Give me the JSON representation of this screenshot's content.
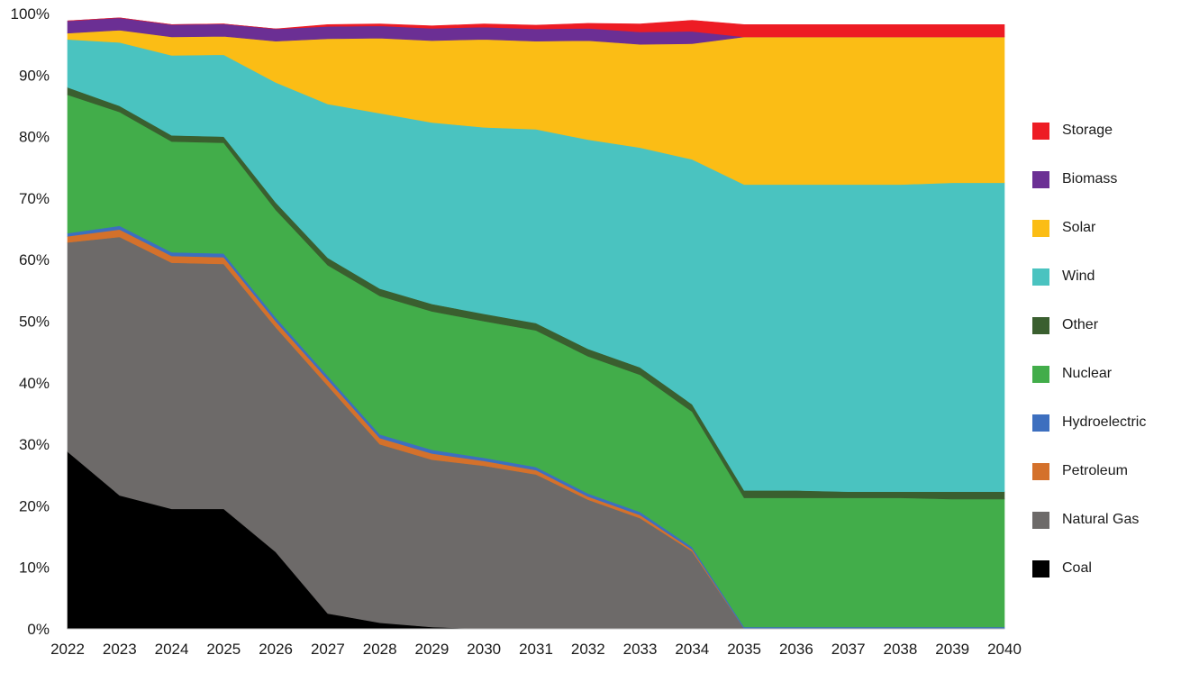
{
  "chart_data": {
    "type": "area",
    "stacked": true,
    "title": "",
    "xlabel": "",
    "ylabel": "",
    "ylim": [
      0,
      100
    ],
    "y_tick_labels": [
      "0%",
      "10%",
      "20%",
      "30%",
      "40%",
      "50%",
      "60%",
      "70%",
      "80%",
      "90%",
      "100%"
    ],
    "x": [
      "2022",
      "2023",
      "2024",
      "2025",
      "2026",
      "2027",
      "2028",
      "2029",
      "2030",
      "2031",
      "2032",
      "2033",
      "2034",
      "2035",
      "2036",
      "2037",
      "2038",
      "2039",
      "2040"
    ],
    "legend_position": "right",
    "series": [
      {
        "name": "Coal",
        "color": "#000000",
        "values": [
          28.8,
          21.7,
          19.5,
          19.5,
          12.5,
          2.5,
          1.0,
          0.3,
          0,
          0,
          0,
          0,
          0,
          0,
          0,
          0,
          0,
          0,
          0
        ]
      },
      {
        "name": "Natural Gas",
        "color": "#6d6a69",
        "values": [
          34.0,
          42.0,
          40.0,
          39.8,
          36.5,
          37.0,
          29.0,
          27.2,
          26.5,
          25.1,
          21.0,
          18.0,
          12.6,
          0,
          0,
          0,
          0,
          0,
          0
        ]
      },
      {
        "name": "Petroleum",
        "color": "#d4712b",
        "values": [
          1.0,
          1.2,
          1.1,
          1.1,
          1.0,
          1.0,
          1.0,
          1.0,
          0.8,
          0.7,
          0.5,
          0.5,
          0.3,
          0,
          0,
          0,
          0,
          0,
          0
        ]
      },
      {
        "name": "Hydroelectric",
        "color": "#3d6fbf",
        "values": [
          0.5,
          0.6,
          0.6,
          0.6,
          0.6,
          0.6,
          0.6,
          0.6,
          0.5,
          0.5,
          0.5,
          0.5,
          0.4,
          0.3,
          0.3,
          0.3,
          0.3,
          0.3,
          0.3
        ]
      },
      {
        "name": "Nuclear",
        "color": "#42ad4a",
        "values": [
          22.5,
          18.5,
          18.0,
          18.0,
          17.5,
          18.0,
          22.5,
          22.5,
          22.2,
          22.2,
          22.3,
          22.3,
          22.0,
          21.0,
          21.0,
          21.0,
          21.0,
          20.8,
          20.8
        ]
      },
      {
        "name": "Other",
        "color": "#3a5f2f",
        "values": [
          1.2,
          1.0,
          1.0,
          1.0,
          1.2,
          1.2,
          1.2,
          1.2,
          1.2,
          1.2,
          1.2,
          1.2,
          1.2,
          1.2,
          1.2,
          1.0,
          1.0,
          1.2,
          1.2
        ]
      },
      {
        "name": "Wind",
        "color": "#4ac3c0",
        "values": [
          7.8,
          10.3,
          13.0,
          13.3,
          19.5,
          25.0,
          28.5,
          29.5,
          30.3,
          31.5,
          34.0,
          35.7,
          39.8,
          49.7,
          49.7,
          49.9,
          49.9,
          50.2,
          50.2
        ]
      },
      {
        "name": "Solar",
        "color": "#fbbd15",
        "values": [
          1.0,
          2.0,
          3.0,
          3.0,
          6.7,
          10.6,
          12.2,
          13.3,
          14.3,
          14.3,
          16.1,
          16.8,
          18.8,
          24.0,
          24.0,
          24.0,
          24.0,
          23.7,
          23.7
        ]
      },
      {
        "name": "Biomass",
        "color": "#6b2f94",
        "values": [
          2.0,
          2.0,
          2.0,
          2.0,
          2.0,
          2.0,
          2.0,
          2.0,
          2.0,
          2.0,
          2.0,
          2.0,
          2.0,
          0,
          0,
          0,
          0,
          0,
          0
        ]
      },
      {
        "name": "Storage",
        "color": "#ed1c24",
        "values": [
          0,
          0,
          0,
          0,
          0,
          0.3,
          0.3,
          0.4,
          0.5,
          0.6,
          0.8,
          1.3,
          1.8,
          2.0,
          2.0,
          2.0,
          2.0,
          2.0,
          2.0
        ]
      }
    ]
  }
}
